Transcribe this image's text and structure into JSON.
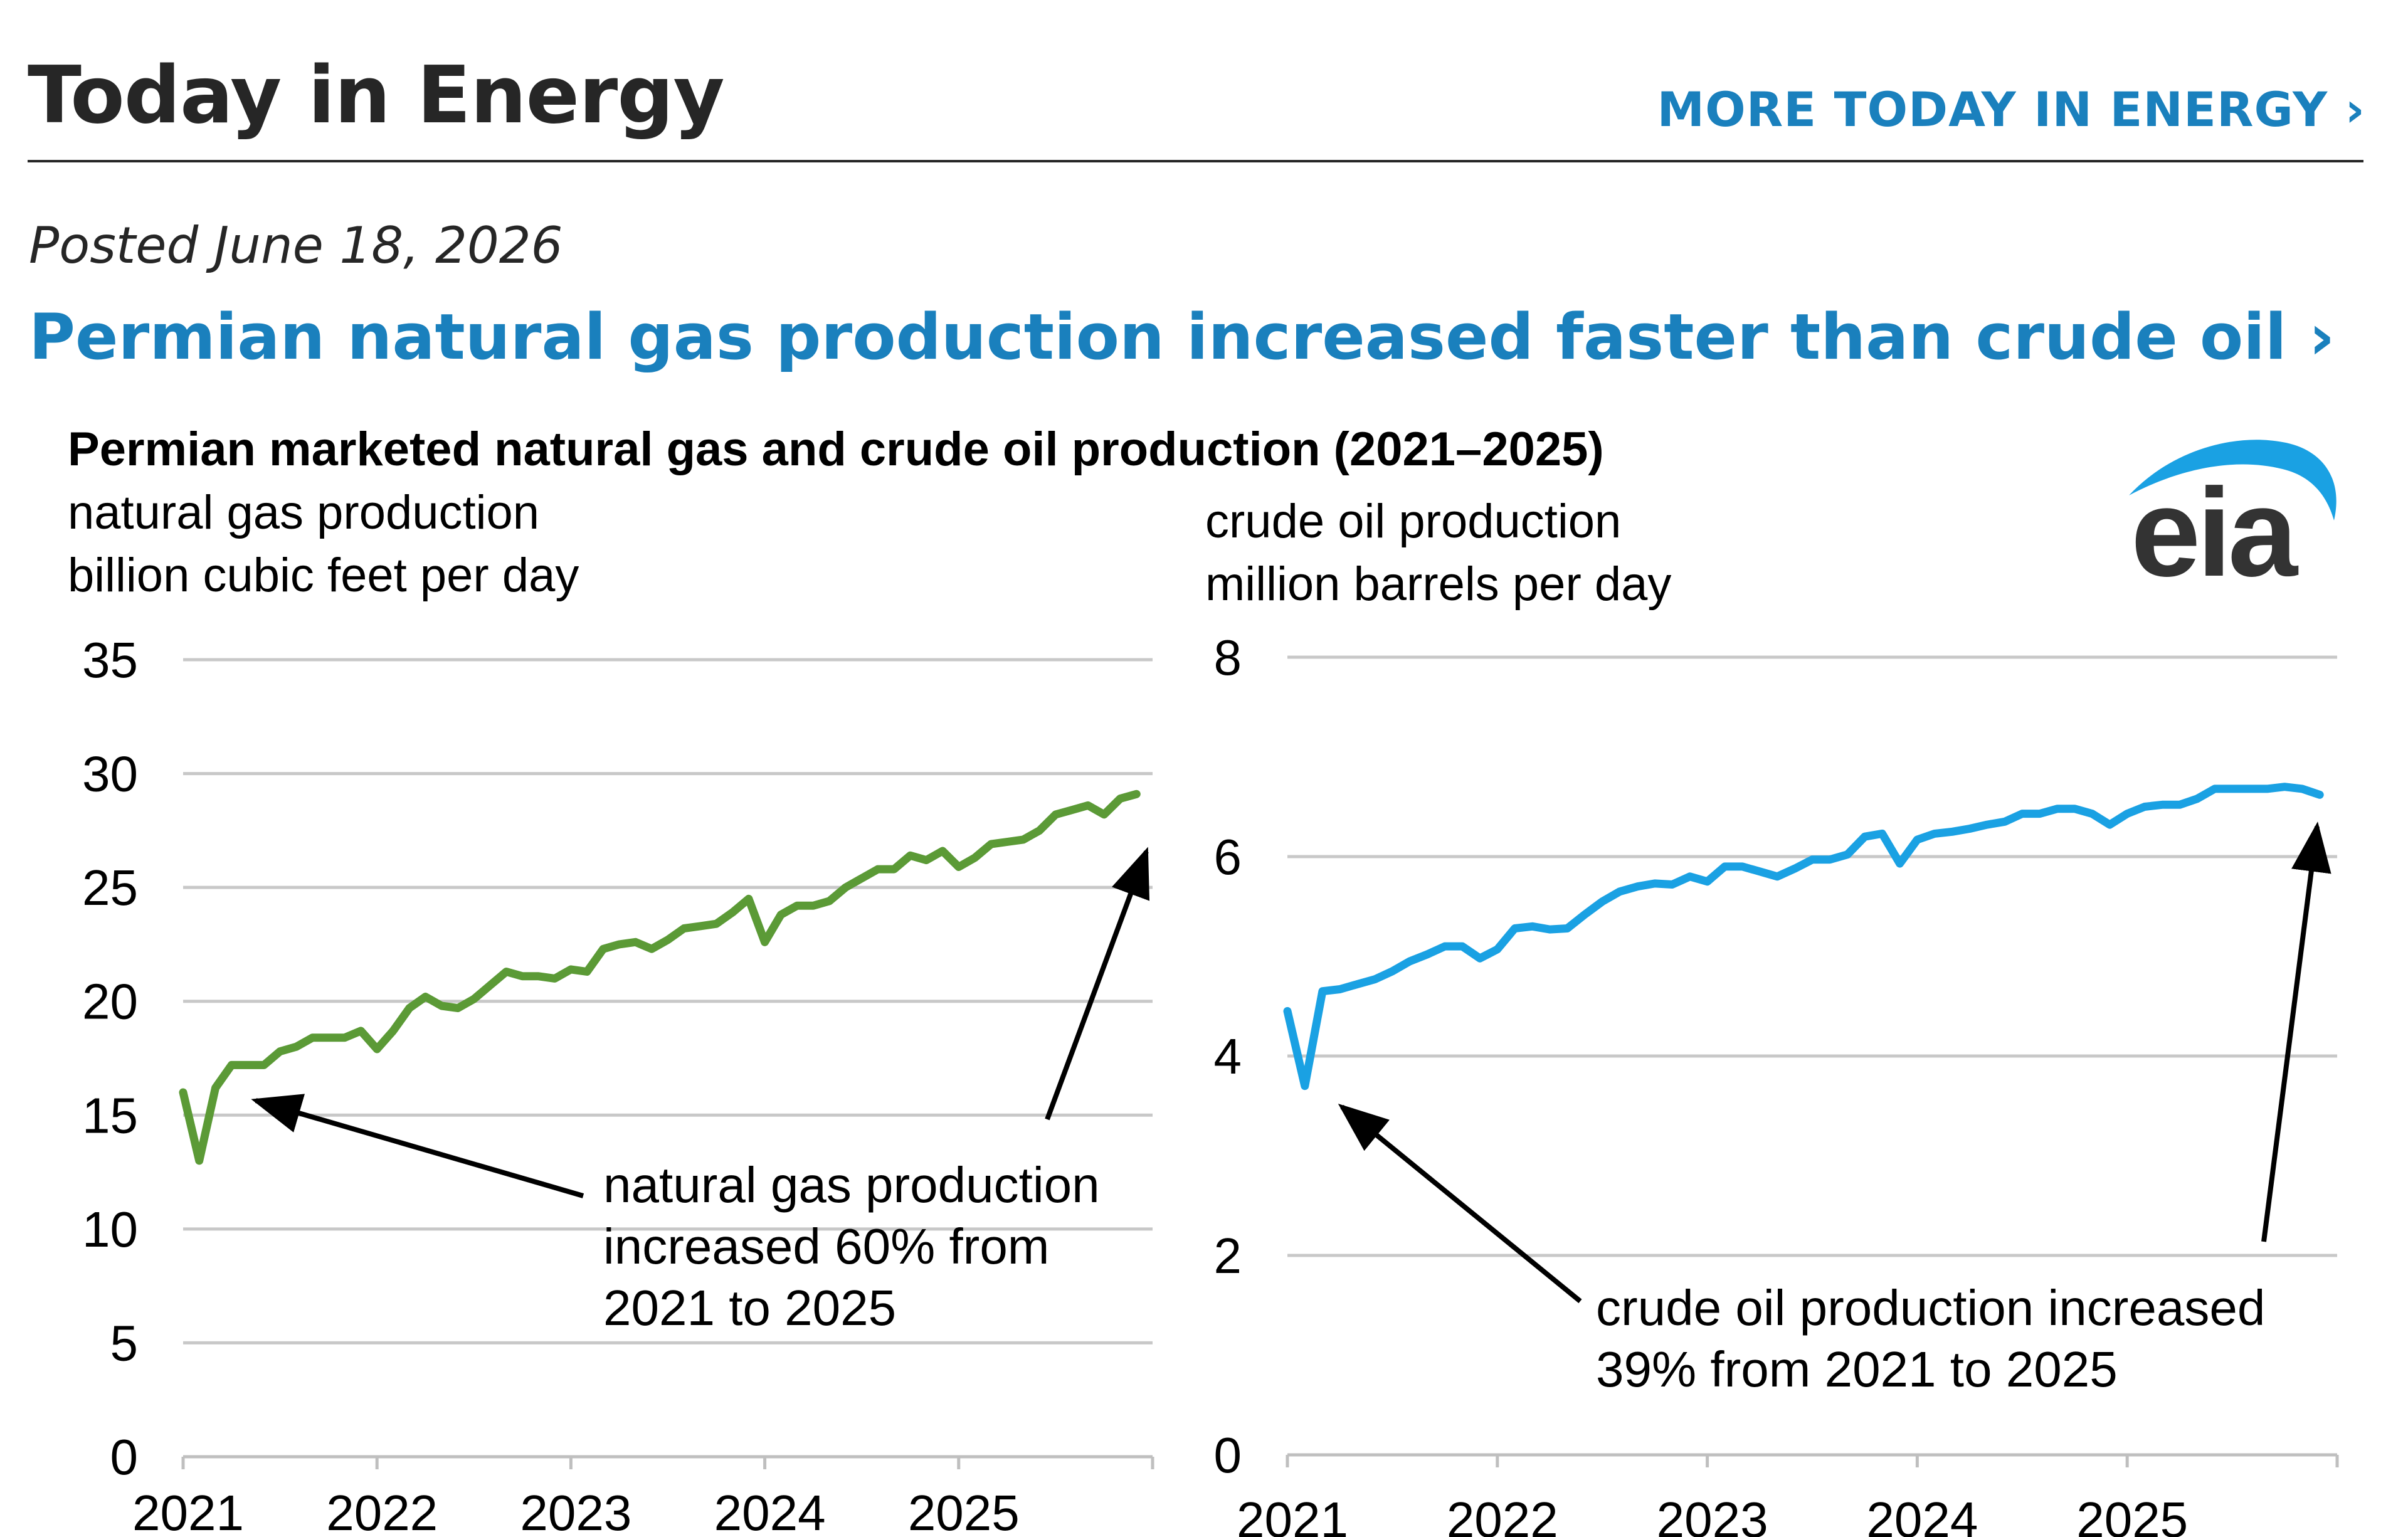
{
  "header": {
    "title": "Today in Energy",
    "more_link": "MORE TODAY IN ENERGY ›"
  },
  "article": {
    "posted": "Posted June 18, 2026",
    "headline": "Permian natural gas production increased faster than crude oil ›"
  },
  "logo": {
    "text": "eia",
    "icon": "eia-logo-icon"
  },
  "colors": {
    "gas": "#5b9a36",
    "oil": "#1aa1e3",
    "link": "#1a80bd",
    "grid": "#c8c8c8",
    "axis": "#bfbfbf",
    "text": "#000000"
  },
  "figure_title": "Permian marketed natural gas and crude oil production (2021–2025)",
  "chart_data": [
    {
      "type": "line",
      "name": "natural gas",
      "unit_line1": "natural gas production",
      "unit_line2": "billion cubic feet per day",
      "ylim": [
        0,
        35
      ],
      "yticks": [
        0,
        5,
        10,
        15,
        20,
        25,
        30,
        35
      ],
      "xlim": [
        2021.0,
        2026.0
      ],
      "xticks": [
        2021,
        2022,
        2023,
        2024,
        2025
      ],
      "xtick_labels": [
        "2021",
        "2022",
        "2023",
        "2024",
        "2025"
      ],
      "grid": true,
      "annotation": [
        "natural gas production",
        "increased 60% from",
        "2021 to 2025"
      ],
      "x": [
        2021.0,
        2021.083,
        2021.167,
        2021.25,
        2021.333,
        2021.417,
        2021.5,
        2021.583,
        2021.667,
        2021.75,
        2021.833,
        2021.917,
        2022.0,
        2022.083,
        2022.167,
        2022.25,
        2022.333,
        2022.417,
        2022.5,
        2022.583,
        2022.667,
        2022.75,
        2022.833,
        2022.917,
        2023.0,
        2023.083,
        2023.167,
        2023.25,
        2023.333,
        2023.417,
        2023.5,
        2023.583,
        2023.667,
        2023.75,
        2023.833,
        2023.917,
        2024.0,
        2024.083,
        2024.167,
        2024.25,
        2024.333,
        2024.417,
        2024.5,
        2024.583,
        2024.667,
        2024.75,
        2024.833,
        2024.917,
        2025.0,
        2025.083,
        2025.167,
        2025.25,
        2025.333,
        2025.417,
        2025.5,
        2025.583,
        2025.667,
        2025.75,
        2025.833,
        2025.917
      ],
      "series": [
        {
          "name": "",
          "values": [
            16.0,
            13.0,
            16.2,
            17.2,
            17.2,
            17.2,
            17.8,
            18.0,
            18.4,
            18.4,
            18.4,
            18.7,
            17.9,
            18.7,
            19.7,
            20.2,
            19.8,
            19.7,
            20.1,
            20.7,
            21.3,
            21.1,
            21.1,
            21.0,
            21.4,
            21.3,
            22.3,
            22.5,
            22.6,
            22.3,
            22.7,
            23.2,
            23.3,
            23.4,
            23.9,
            24.5,
            22.6,
            23.8,
            24.2,
            24.2,
            24.4,
            25.0,
            25.4,
            25.8,
            25.8,
            26.4,
            26.2,
            26.6,
            25.9,
            26.3,
            26.9,
            27.0,
            27.1,
            27.5,
            28.2,
            28.4,
            28.6,
            28.2,
            28.9,
            29.1
          ]
        }
      ]
    },
    {
      "type": "line",
      "name": "crude oil",
      "unit_line1": "crude oil production",
      "unit_line2": "million barrels per day",
      "ylim": [
        0,
        8
      ],
      "yticks": [
        0,
        2,
        4,
        6,
        8
      ],
      "xlim": [
        2021.0,
        2026.0
      ],
      "xticks": [
        2021,
        2022,
        2023,
        2024,
        2025
      ],
      "xtick_labels": [
        "2021",
        "2022",
        "2023",
        "2024",
        "2025"
      ],
      "grid": true,
      "annotation": [
        "crude oil production increased",
        "39% from 2021 to 2025"
      ],
      "x": [
        2021.0,
        2021.083,
        2021.167,
        2021.25,
        2021.333,
        2021.417,
        2021.5,
        2021.583,
        2021.667,
        2021.75,
        2021.833,
        2021.917,
        2022.0,
        2022.083,
        2022.167,
        2022.25,
        2022.333,
        2022.417,
        2022.5,
        2022.583,
        2022.667,
        2022.75,
        2022.833,
        2022.917,
        2023.0,
        2023.083,
        2023.167,
        2023.25,
        2023.333,
        2023.417,
        2023.5,
        2023.583,
        2023.667,
        2023.75,
        2023.833,
        2023.917,
        2024.0,
        2024.083,
        2024.167,
        2024.25,
        2024.333,
        2024.417,
        2024.5,
        2024.583,
        2024.667,
        2024.75,
        2024.833,
        2024.917,
        2025.0,
        2025.083,
        2025.167,
        2025.25,
        2025.333,
        2025.417,
        2025.5,
        2025.583,
        2025.667,
        2025.75,
        2025.833,
        2025.917
      ],
      "series": [
        {
          "name": "",
          "values": [
            4.45,
            3.7,
            4.65,
            4.67,
            4.72,
            4.77,
            4.85,
            4.95,
            5.02,
            5.1,
            5.1,
            4.98,
            5.07,
            5.28,
            5.3,
            5.27,
            5.28,
            5.42,
            5.55,
            5.65,
            5.7,
            5.73,
            5.72,
            5.8,
            5.75,
            5.9,
            5.9,
            5.85,
            5.8,
            5.88,
            5.97,
            5.97,
            6.02,
            6.2,
            6.23,
            5.93,
            6.17,
            6.23,
            6.25,
            6.28,
            6.32,
            6.35,
            6.43,
            6.43,
            6.48,
            6.48,
            6.43,
            6.32,
            6.43,
            6.5,
            6.52,
            6.52,
            6.58,
            6.68,
            6.68,
            6.68,
            6.68,
            6.7,
            6.68,
            6.62
          ]
        }
      ]
    }
  ]
}
